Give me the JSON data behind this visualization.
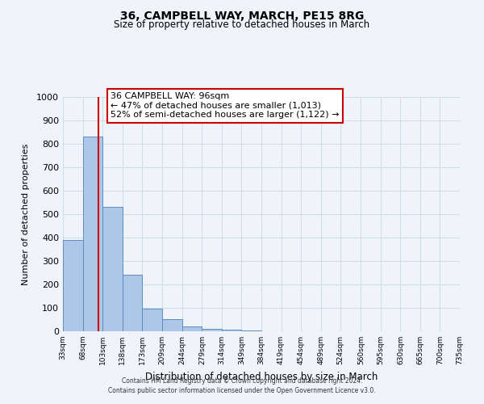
{
  "title": "36, CAMPBELL WAY, MARCH, PE15 8RG",
  "subtitle": "Size of property relative to detached houses in March",
  "xlabel": "Distribution of detached houses by size in March",
  "ylabel": "Number of detached properties",
  "bar_left_edges": [
    33,
    68,
    103,
    138,
    173,
    209,
    244,
    279,
    314,
    349,
    384,
    419,
    454,
    489,
    524,
    560,
    595,
    630,
    665,
    700
  ],
  "bar_heights": [
    390,
    830,
    530,
    242,
    95,
    52,
    20,
    12,
    8,
    5,
    0,
    0,
    0,
    0,
    0,
    0,
    0,
    0,
    0,
    0
  ],
  "bin_width": 35,
  "bar_color": "#aec6e8",
  "bar_edge_color": "#5a8fc2",
  "property_line_x": 96,
  "property_line_color": "#cc0000",
  "ylim": [
    0,
    1000
  ],
  "yticks": [
    0,
    100,
    200,
    300,
    400,
    500,
    600,
    700,
    800,
    900,
    1000
  ],
  "x_tick_labels": [
    "33sqm",
    "68sqm",
    "103sqm",
    "138sqm",
    "173sqm",
    "209sqm",
    "244sqm",
    "279sqm",
    "314sqm",
    "349sqm",
    "384sqm",
    "419sqm",
    "454sqm",
    "489sqm",
    "524sqm",
    "560sqm",
    "595sqm",
    "630sqm",
    "665sqm",
    "700sqm",
    "735sqm"
  ],
  "xlim_left": 33,
  "xlim_right": 735,
  "annotation_title": "36 CAMPBELL WAY: 96sqm",
  "annotation_line1": "← 47% of detached houses are smaller (1,013)",
  "annotation_line2": "52% of semi-detached houses are larger (1,122) →",
  "annotation_box_color": "#ffffff",
  "annotation_border_color": "#cc0000",
  "grid_color": "#d0dce8",
  "background_color": "#f0f4fa",
  "footer_line1": "Contains HM Land Registry data © Crown copyright and database right 2024.",
  "footer_line2": "Contains public sector information licensed under the Open Government Licence v3.0."
}
